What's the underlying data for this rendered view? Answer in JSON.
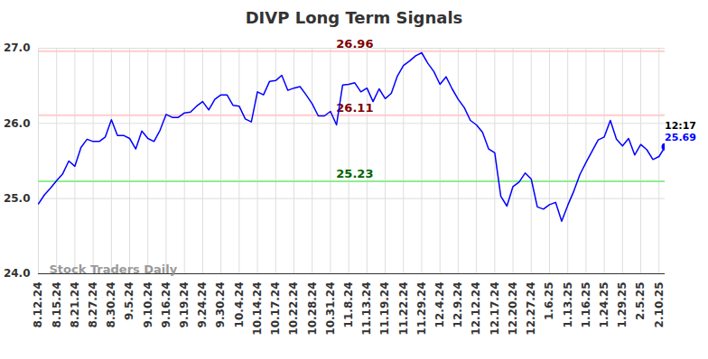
{
  "chart_data": {
    "type": "line",
    "title": "DIVP Long Term Signals",
    "color": "#0000ff",
    "grid": true,
    "ylim": [
      24,
      27
    ],
    "yticks": [
      24,
      25,
      26,
      27
    ],
    "categories": [
      "8.12.24",
      null,
      null,
      "8.15.24",
      null,
      null,
      "8.21.24",
      null,
      null,
      "8.27.24",
      null,
      null,
      "8.30.24",
      null,
      null,
      "9.5.24",
      null,
      null,
      "9.10.24",
      null,
      null,
      "9.16.24",
      null,
      null,
      "9.19.24",
      null,
      null,
      "9.24.24",
      null,
      null,
      "9.30.24",
      null,
      null,
      "10.4.24",
      null,
      null,
      "10.14.24",
      null,
      null,
      "10.17.24",
      null,
      null,
      "10.22.24",
      null,
      null,
      "10.28.24",
      null,
      null,
      "10.31.24",
      null,
      null,
      "11.8.24",
      null,
      null,
      "11.13.24",
      null,
      null,
      "11.19.24",
      null,
      null,
      "11.22.24",
      null,
      null,
      "11.29.24",
      null,
      null,
      "12.4.24",
      null,
      null,
      "12.9.24",
      null,
      null,
      "12.12.24",
      null,
      null,
      "12.17.24",
      null,
      null,
      "12.20.24",
      null,
      null,
      "12.27.24",
      null,
      null,
      "1.6.25",
      null,
      null,
      "1.13.25",
      null,
      null,
      "1.16.25",
      null,
      null,
      "1.24.25",
      null,
      null,
      "1.29.25",
      null,
      null,
      "2.5.25",
      null,
      null,
      "2.10.25",
      null
    ],
    "values": [
      24.93,
      25.05,
      25.14,
      25.24,
      25.33,
      25.5,
      25.43,
      25.68,
      25.79,
      25.76,
      25.76,
      25.82,
      26.05,
      25.84,
      25.84,
      25.8,
      25.66,
      25.9,
      25.8,
      25.76,
      25.91,
      26.12,
      26.08,
      26.08,
      26.14,
      26.15,
      26.23,
      26.29,
      26.18,
      26.32,
      26.38,
      26.38,
      26.24,
      26.23,
      26.06,
      26.02,
      26.42,
      26.38,
      26.56,
      26.57,
      26.64,
      26.44,
      26.47,
      26.49,
      26.38,
      26.26,
      26.1,
      26.1,
      26.16,
      25.98,
      26.51,
      26.52,
      26.54,
      26.42,
      26.47,
      26.29,
      26.46,
      26.33,
      26.4,
      26.63,
      26.77,
      26.83,
      26.9,
      26.94,
      26.8,
      26.69,
      26.52,
      26.62,
      26.46,
      26.32,
      26.21,
      26.04,
      25.98,
      25.88,
      25.66,
      25.61,
      25.03,
      24.9,
      25.16,
      25.22,
      25.34,
      25.26,
      24.89,
      24.86,
      24.92,
      24.95,
      24.7,
      24.91,
      25.1,
      25.32,
      25.48,
      25.63,
      25.78,
      25.82,
      26.04,
      25.79,
      25.7,
      25.8,
      25.58,
      25.72,
      25.65,
      25.52,
      25.56,
      25.69
    ],
    "hlines": [
      {
        "value": 26.96,
        "color": "#ffcccc",
        "label_color": "#800000"
      },
      {
        "value": 26.11,
        "color": "#ffcccc",
        "label_color": "#800000"
      },
      {
        "value": 25.23,
        "color": "#90ee90",
        "label_color": "#006400"
      }
    ],
    "annotations": [
      {
        "text": "12:17"
      }
    ],
    "watermark": "Stock Traders Daily"
  }
}
